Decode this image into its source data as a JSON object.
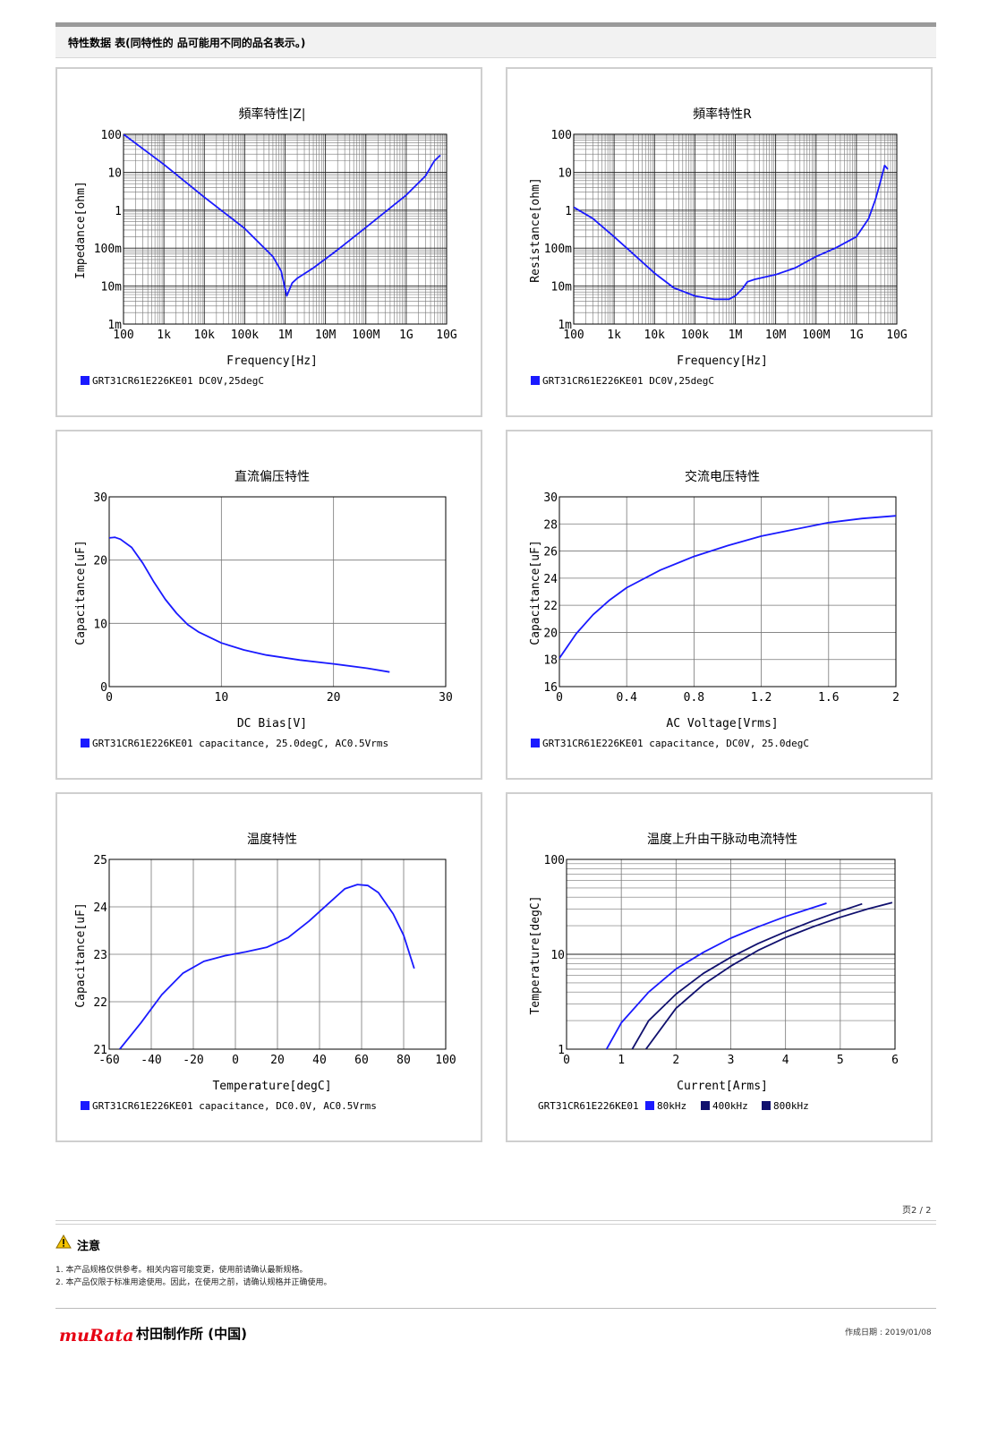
{
  "header": {
    "text": "特性数据 表(同特性的 品可能用不同的品名表示。)"
  },
  "colors": {
    "blue": "#1a1aff",
    "navy": "#10106e",
    "grid": "#777777"
  },
  "chart_data": [
    {
      "type": "line",
      "title": "頻率特性|Z|",
      "xlabel": "Frequency[Hz]",
      "ylabel": "Impedance[ohm]",
      "xscale": "log",
      "yscale": "log",
      "xlim": [
        100,
        10000000000
      ],
      "ylim": [
        0.001,
        100
      ],
      "xtick_labels": [
        "100",
        "1k",
        "10k",
        "100k",
        "1M",
        "10M",
        "100M",
        "1G",
        "10G"
      ],
      "ytick_labels": [
        "1m",
        "10m",
        "100m",
        "1",
        "10",
        "100"
      ],
      "legend": [
        "GRT31CR61E226KE01 DC0V,25degC"
      ],
      "series": [
        {
          "values": [
            [
              100,
              100
            ],
            [
              1000,
              16
            ],
            [
              10000,
              2.2
            ],
            [
              100000,
              0.33
            ],
            [
              500000,
              0.06
            ],
            [
              800000,
              0.025
            ],
            [
              1100000,
              0.0055
            ],
            [
              1500000,
              0.012
            ],
            [
              2000000,
              0.016
            ],
            [
              5000000,
              0.03
            ],
            [
              20000000,
              0.09
            ],
            [
              100000000,
              0.35
            ],
            [
              1000000000,
              2.5
            ],
            [
              3000000000,
              8
            ],
            [
              5000000000,
              20
            ],
            [
              7000000000,
              28
            ]
          ]
        }
      ]
    },
    {
      "type": "line",
      "title": "頻率特性R",
      "xlabel": "Frequency[Hz]",
      "ylabel": "Resistance[ohm]",
      "xscale": "log",
      "yscale": "log",
      "xlim": [
        100,
        10000000000
      ],
      "ylim": [
        0.001,
        100
      ],
      "xtick_labels": [
        "100",
        "1k",
        "10k",
        "100k",
        "1M",
        "10M",
        "100M",
        "1G",
        "10G"
      ],
      "ytick_labels": [
        "1m",
        "10m",
        "100m",
        "1",
        "10",
        "100"
      ],
      "legend": [
        "GRT31CR61E226KE01 DC0V,25degC"
      ],
      "series": [
        {
          "values": [
            [
              100,
              1.2
            ],
            [
              300,
              0.6
            ],
            [
              1000,
              0.2
            ],
            [
              3000,
              0.07
            ],
            [
              10000,
              0.022
            ],
            [
              30000,
              0.009
            ],
            [
              100000,
              0.0055
            ],
            [
              300000,
              0.0045
            ],
            [
              700000,
              0.0045
            ],
            [
              1000000,
              0.0055
            ],
            [
              1500000,
              0.0085
            ],
            [
              2000000,
              0.013
            ],
            [
              3000000,
              0.015
            ],
            [
              10000000,
              0.02
            ],
            [
              30000000,
              0.03
            ],
            [
              100000000,
              0.06
            ],
            [
              300000000,
              0.1
            ],
            [
              1000000000,
              0.2
            ],
            [
              2000000000,
              0.6
            ],
            [
              3000000000,
              2
            ],
            [
              4000000000,
              6
            ],
            [
              5000000000,
              15
            ],
            [
              6000000000,
              12
            ]
          ]
        }
      ]
    },
    {
      "type": "line",
      "title": "直流偏压特性",
      "xlabel": "DC Bias[V]",
      "ylabel": "Capacitance[uF]",
      "xlim": [
        0,
        30
      ],
      "ylim": [
        0,
        30
      ],
      "xticks": [
        0,
        10,
        20,
        30
      ],
      "yticks": [
        0,
        10,
        20,
        30
      ],
      "legend": [
        "GRT31CR61E226KE01 capacitance, 25.0degC, AC0.5Vrms"
      ],
      "series": [
        {
          "values": [
            [
              0,
              23.5
            ],
            [
              0.5,
              23.6
            ],
            [
              1,
              23.3
            ],
            [
              2,
              22
            ],
            [
              3,
              19.5
            ],
            [
              4,
              16.5
            ],
            [
              5,
              13.8
            ],
            [
              6,
              11.6
            ],
            [
              7,
              9.8
            ],
            [
              8,
              8.6
            ],
            [
              10,
              6.9
            ],
            [
              12,
              5.8
            ],
            [
              14,
              5
            ],
            [
              17,
              4.2
            ],
            [
              20,
              3.6
            ],
            [
              23,
              2.9
            ],
            [
              25,
              2.3
            ]
          ]
        }
      ]
    },
    {
      "type": "line",
      "title": "交流电压特性",
      "xlabel": "AC Voltage[Vrms]",
      "ylabel": "Capacitance[uF]",
      "xlim": [
        0,
        2
      ],
      "ylim": [
        16,
        30
      ],
      "xticks": [
        0,
        0.4,
        0.8,
        1.2,
        1.6,
        2
      ],
      "yticks": [
        16,
        18,
        20,
        22,
        24,
        26,
        28,
        30
      ],
      "legend": [
        "GRT31CR61E226KE01 capacitance, DC0V, 25.0degC"
      ],
      "series": [
        {
          "values": [
            [
              0,
              18.1
            ],
            [
              0.1,
              19.9
            ],
            [
              0.2,
              21.3
            ],
            [
              0.3,
              22.4
            ],
            [
              0.4,
              23.3
            ],
            [
              0.6,
              24.6
            ],
            [
              0.8,
              25.6
            ],
            [
              1,
              26.4
            ],
            [
              1.2,
              27.1
            ],
            [
              1.4,
              27.6
            ],
            [
              1.6,
              28.1
            ],
            [
              1.8,
              28.4
            ],
            [
              2,
              28.6
            ]
          ]
        }
      ]
    },
    {
      "type": "line",
      "title": "温度特性",
      "xlabel": "Temperature[degC]",
      "ylabel": "Capacitance[uF]",
      "xlim": [
        -60,
        100
      ],
      "ylim": [
        21,
        25
      ],
      "xticks": [
        -60,
        -40,
        -20,
        0,
        20,
        40,
        60,
        80,
        100
      ],
      "yticks": [
        21,
        22,
        23,
        24,
        25
      ],
      "legend": [
        "GRT31CR61E226KE01 capacitance, DC0.0V, AC0.5Vrms"
      ],
      "series": [
        {
          "values": [
            [
              -55,
              21
            ],
            [
              -45,
              21.55
            ],
            [
              -35,
              22.15
            ],
            [
              -25,
              22.6
            ],
            [
              -15,
              22.85
            ],
            [
              -5,
              22.97
            ],
            [
              5,
              23.05
            ],
            [
              15,
              23.15
            ],
            [
              25,
              23.35
            ],
            [
              35,
              23.7
            ],
            [
              45,
              24.1
            ],
            [
              52,
              24.38
            ],
            [
              58,
              24.47
            ],
            [
              63,
              24.45
            ],
            [
              68,
              24.3
            ],
            [
              75,
              23.85
            ],
            [
              80,
              23.4
            ],
            [
              85,
              22.7
            ]
          ]
        }
      ]
    },
    {
      "type": "line",
      "title": "温度上升由干脉动电流特性",
      "xlabel": "Current[Arms]",
      "ylabel": "Temperature[degC]",
      "xlim": [
        0,
        6
      ],
      "ylim": [
        1,
        100
      ],
      "yscale": "log",
      "xticks": [
        0,
        1,
        2,
        3,
        4,
        5,
        6
      ],
      "ytick_labels": [
        "1",
        "10",
        "100"
      ],
      "legend_prefix": "GRT31CR61E226KE01",
      "series": [
        {
          "name": "80kHz",
          "color": "#1a1aff",
          "values": [
            [
              0.73,
              1
            ],
            [
              1,
              1.9
            ],
            [
              1.5,
              4
            ],
            [
              2,
              7
            ],
            [
              2.5,
              10.5
            ],
            [
              3,
              14.8
            ],
            [
              3.5,
              19.5
            ],
            [
              4,
              25
            ],
            [
              4.5,
              31
            ],
            [
              4.75,
              34.5
            ]
          ]
        },
        {
          "name": "400kHz",
          "color": "#10106e",
          "values": [
            [
              1.2,
              1
            ],
            [
              1.5,
              2
            ],
            [
              2,
              3.8
            ],
            [
              2.5,
              6.3
            ],
            [
              3,
              9.3
            ],
            [
              3.5,
              13
            ],
            [
              4,
              17.3
            ],
            [
              4.5,
              22.5
            ],
            [
              5,
              28.5
            ],
            [
              5.4,
              34
            ]
          ]
        },
        {
          "name": "800kHz",
          "color": "#10106e",
          "values": [
            [
              1.45,
              1
            ],
            [
              2,
              2.7
            ],
            [
              2.5,
              4.8
            ],
            [
              3,
              7.5
            ],
            [
              3.5,
              11
            ],
            [
              4,
              15
            ],
            [
              4.5,
              19.5
            ],
            [
              5,
              24.5
            ],
            [
              5.5,
              30
            ],
            [
              5.95,
              35
            ]
          ]
        }
      ]
    }
  ],
  "page_number": "页2 / 2",
  "notice": {
    "title": "注意",
    "lines": [
      "1.  本产品规格仅供参考。相关内容可能变更，使用前请确认最新规格。",
      "2.  本产品仅限于标准用途使用。因此，在使用之前，请确认规格并正确使用。"
    ]
  },
  "footer": {
    "logo": "muRata",
    "company": "村田制作所 (中国)",
    "created": "作成日期 : 2019/01/08"
  }
}
